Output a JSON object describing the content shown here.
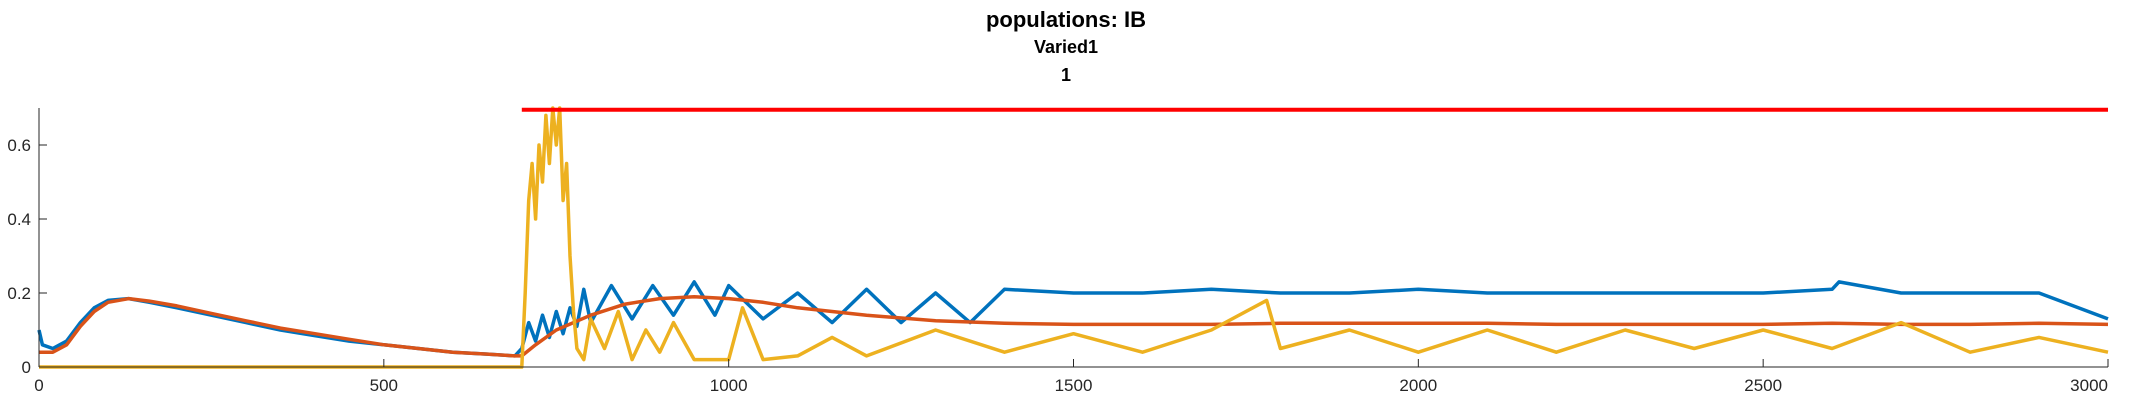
{
  "chart_data": {
    "type": "line",
    "title": "populations: IB",
    "subtitle_lines": [
      "Varied1",
      "1"
    ],
    "xlabel": "",
    "ylabel": "",
    "xlim": [
      0,
      3000
    ],
    "ylim": [
      0,
      0.7
    ],
    "xticks": [
      0,
      500,
      1000,
      1500,
      2000,
      2500,
      3000
    ],
    "yticks": [
      0,
      0.2,
      0.4,
      0.6
    ],
    "ytick_labels": [
      "0",
      "0.2",
      "0.4",
      "0.6"
    ],
    "grid": false,
    "legend": "none",
    "series": [
      {
        "color": "#0072BD",
        "x": [
          0,
          5,
          20,
          40,
          60,
          80,
          100,
          130,
          160,
          200,
          250,
          300,
          350,
          400,
          450,
          500,
          550,
          600,
          650,
          690,
          700,
          710,
          720,
          730,
          740,
          750,
          760,
          770,
          780,
          790,
          800,
          830,
          860,
          890,
          920,
          950,
          980,
          1000,
          1050,
          1100,
          1150,
          1200,
          1250,
          1300,
          1350,
          1400,
          1500,
          1600,
          1700,
          1800,
          1900,
          2000,
          2100,
          2200,
          2300,
          2400,
          2500,
          2600,
          2610,
          2700,
          2800,
          2900,
          3000
        ],
        "y": [
          0.1,
          0.06,
          0.05,
          0.07,
          0.12,
          0.16,
          0.18,
          0.185,
          0.175,
          0.16,
          0.14,
          0.12,
          0.1,
          0.085,
          0.07,
          0.06,
          0.05,
          0.04,
          0.035,
          0.03,
          0.05,
          0.12,
          0.07,
          0.14,
          0.08,
          0.15,
          0.09,
          0.16,
          0.11,
          0.21,
          0.12,
          0.22,
          0.13,
          0.22,
          0.14,
          0.23,
          0.14,
          0.22,
          0.13,
          0.2,
          0.12,
          0.21,
          0.12,
          0.2,
          0.12,
          0.21,
          0.2,
          0.2,
          0.21,
          0.2,
          0.2,
          0.21,
          0.2,
          0.2,
          0.2,
          0.2,
          0.2,
          0.21,
          0.23,
          0.2,
          0.2,
          0.2,
          0.13
        ]
      },
      {
        "color": "#D95319",
        "x": [
          0,
          20,
          40,
          60,
          80,
          100,
          130,
          160,
          200,
          250,
          300,
          350,
          400,
          450,
          500,
          550,
          600,
          650,
          690,
          700,
          720,
          750,
          800,
          850,
          900,
          950,
          1000,
          1050,
          1100,
          1200,
          1300,
          1400,
          1500,
          1600,
          1700,
          1800,
          1900,
          2000,
          2100,
          2200,
          2300,
          2400,
          2500,
          2600,
          2700,
          2800,
          2900,
          3000
        ],
        "y": [
          0.04,
          0.04,
          0.06,
          0.11,
          0.15,
          0.175,
          0.185,
          0.178,
          0.165,
          0.145,
          0.125,
          0.105,
          0.09,
          0.075,
          0.06,
          0.05,
          0.04,
          0.035,
          0.03,
          0.03,
          0.06,
          0.1,
          0.14,
          0.17,
          0.185,
          0.19,
          0.185,
          0.175,
          0.16,
          0.14,
          0.125,
          0.118,
          0.115,
          0.115,
          0.115,
          0.118,
          0.118,
          0.118,
          0.118,
          0.115,
          0.115,
          0.115,
          0.115,
          0.118,
          0.115,
          0.115,
          0.118,
          0.115
        ]
      },
      {
        "color": "#EDB120",
        "x": [
          0,
          690,
          700,
          705,
          710,
          715,
          720,
          725,
          730,
          735,
          740,
          745,
          750,
          755,
          760,
          765,
          770,
          775,
          780,
          790,
          800,
          820,
          840,
          860,
          880,
          900,
          920,
          950,
          1000,
          1020,
          1050,
          1100,
          1150,
          1200,
          1300,
          1400,
          1500,
          1600,
          1700,
          1780,
          1800,
          1900,
          2000,
          2100,
          2200,
          2300,
          2400,
          2500,
          2600,
          2700,
          2800,
          2900,
          3000
        ],
        "y": [
          0,
          0,
          0,
          0.2,
          0.45,
          0.55,
          0.4,
          0.6,
          0.5,
          0.68,
          0.55,
          0.7,
          0.6,
          0.7,
          0.45,
          0.55,
          0.3,
          0.15,
          0.05,
          0.02,
          0.13,
          0.05,
          0.15,
          0.02,
          0.1,
          0.04,
          0.12,
          0.02,
          0.02,
          0.16,
          0.02,
          0.03,
          0.08,
          0.03,
          0.1,
          0.04,
          0.09,
          0.04,
          0.1,
          0.18,
          0.05,
          0.1,
          0.04,
          0.1,
          0.04,
          0.1,
          0.05,
          0.1,
          0.05,
          0.12,
          0.04,
          0.08,
          0.04
        ]
      },
      {
        "color": "#FF0000",
        "x": [
          700,
          3000
        ],
        "y": [
          0.695,
          0.695
        ]
      }
    ]
  }
}
